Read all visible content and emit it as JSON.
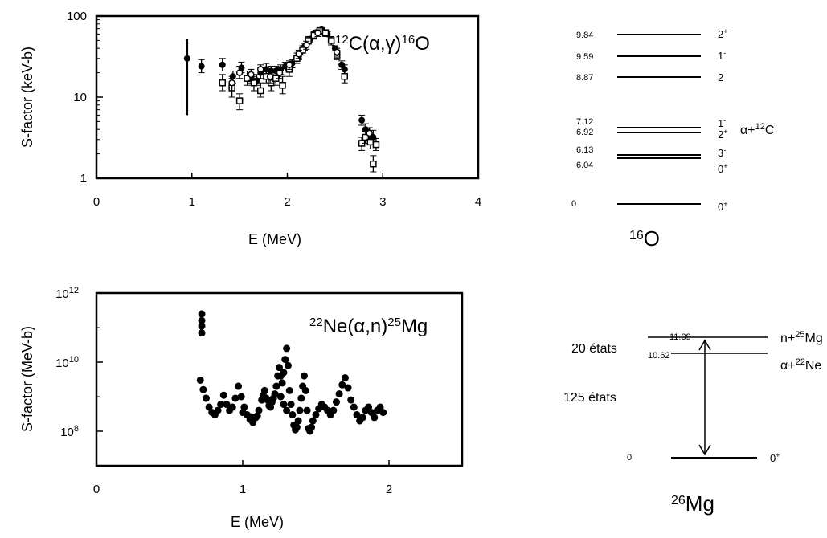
{
  "chart_data": [
    {
      "type": "scatter",
      "reaction": {
        "pre": "12",
        "a": "C(α,γ)",
        "sup2": "16",
        "b": "O"
      },
      "xlabel": "E (MeV)",
      "ylabel": "S-factor (keV-b)",
      "xlim": [
        0,
        4
      ],
      "ylim": [
        1,
        100
      ],
      "yscale": "log",
      "xticks": [
        "0",
        "1",
        "2",
        "3",
        "4"
      ],
      "yticks": [
        "1",
        "10",
        "100"
      ],
      "series": [
        {
          "marker": "filled-circle",
          "points": [
            [
              0.95,
              30
            ],
            [
              1.1,
              24
            ],
            [
              1.32,
              25
            ],
            [
              1.43,
              18
            ],
            [
              1.52,
              23
            ],
            [
              1.62,
              18
            ],
            [
              1.68,
              16
            ],
            [
              1.72,
              20
            ],
            [
              1.78,
              22
            ],
            [
              1.83,
              21
            ],
            [
              1.88,
              21
            ],
            [
              1.93,
              22
            ],
            [
              1.98,
              24
            ],
            [
              2.05,
              26
            ],
            [
              2.12,
              32
            ],
            [
              2.18,
              42
            ],
            [
              2.24,
              52
            ],
            [
              2.3,
              62
            ],
            [
              2.36,
              68
            ],
            [
              2.42,
              60
            ],
            [
              2.5,
              40
            ],
            [
              2.57,
              25
            ],
            [
              2.6,
              22
            ],
            [
              2.78,
              5.2
            ],
            [
              2.82,
              4.0
            ],
            [
              2.86,
              3.5
            ],
            [
              2.9,
              3.2
            ]
          ],
          "errors": [
            [
              6,
              52
            ],
            [
              20,
              29
            ],
            [
              21,
              30
            ],
            [
              15,
              21
            ],
            [
              20,
              27
            ],
            [
              15,
              21
            ],
            [
              14,
              19
            ],
            [
              17,
              23
            ],
            [
              19,
              26
            ],
            [
              18,
              24
            ],
            [
              18,
              24
            ],
            [
              19,
              25
            ],
            [
              21,
              27
            ],
            [
              23,
              29
            ],
            [
              29,
              36
            ],
            [
              38,
              46
            ],
            [
              48,
              56
            ],
            [
              58,
              67
            ],
            [
              64,
              72
            ],
            [
              56,
              64
            ],
            [
              37,
              43
            ],
            [
              22,
              28
            ],
            [
              19,
              25
            ],
            [
              4.5,
              6.0
            ],
            [
              3.4,
              4.7
            ],
            [
              2.9,
              4.2
            ],
            [
              2.6,
              3.9
            ]
          ]
        },
        {
          "marker": "open-square",
          "points": [
            [
              1.32,
              15
            ],
            [
              1.42,
              13
            ],
            [
              1.5,
              9
            ],
            [
              1.58,
              17
            ],
            [
              1.65,
              15
            ],
            [
              1.72,
              12
            ],
            [
              1.78,
              18
            ],
            [
              1.83,
              15
            ],
            [
              1.88,
              17
            ],
            [
              1.95,
              14
            ],
            [
              2.02,
              22
            ],
            [
              2.1,
              30
            ],
            [
              2.16,
              38
            ],
            [
              2.22,
              50
            ],
            [
              2.28,
              58
            ],
            [
              2.34,
              66
            ],
            [
              2.4,
              62
            ],
            [
              2.46,
              50
            ],
            [
              2.52,
              33
            ],
            [
              2.6,
              18
            ],
            [
              2.78,
              2.7
            ],
            [
              2.82,
              3.2
            ],
            [
              2.87,
              2.8
            ],
            [
              2.9,
              1.5
            ],
            [
              2.93,
              2.6
            ]
          ],
          "errors": [
            [
              12,
              19
            ],
            [
              10,
              17
            ],
            [
              7,
              11
            ],
            [
              14,
              21
            ],
            [
              12,
              18
            ],
            [
              10,
              15
            ],
            [
              15,
              22
            ],
            [
              12,
              19
            ],
            [
              14,
              21
            ],
            [
              11,
              18
            ],
            [
              18,
              26
            ],
            [
              26,
              35
            ],
            [
              33,
              43
            ],
            [
              45,
              56
            ],
            [
              52,
              64
            ],
            [
              60,
              72
            ],
            [
              56,
              68
            ],
            [
              44,
              56
            ],
            [
              29,
              38
            ],
            [
              15,
              22
            ],
            [
              2.2,
              3.2
            ],
            [
              2.7,
              3.8
            ],
            [
              2.3,
              3.4
            ],
            [
              1.2,
              1.9
            ],
            [
              2.2,
              3.1
            ]
          ]
        },
        {
          "marker": "open-circle",
          "points": [
            [
              1.42,
              15
            ],
            [
              1.5,
              20
            ],
            [
              1.62,
              19
            ],
            [
              1.72,
              22
            ],
            [
              1.82,
              18
            ],
            [
              1.92,
              20
            ],
            [
              2.02,
              25
            ],
            [
              2.12,
              34
            ],
            [
              2.2,
              44
            ],
            [
              2.32,
              62
            ],
            [
              2.52,
              36
            ],
            [
              2.86,
              3.6
            ]
          ],
          "errors": [
            [
              12,
              18
            ],
            [
              17,
              24
            ],
            [
              16,
              22
            ],
            [
              19,
              25
            ],
            [
              15,
              21
            ],
            [
              17,
              23
            ],
            [
              22,
              28
            ],
            [
              30,
              38
            ],
            [
              39,
              49
            ],
            [
              56,
              68
            ],
            [
              32,
              40
            ],
            [
              3.0,
              4.2
            ]
          ]
        }
      ]
    },
    {
      "type": "scatter",
      "reaction": {
        "pre": "22",
        "a": "Ne(α,n)",
        "sup2": "25",
        "b": "Mg"
      },
      "xlabel": "E (MeV)",
      "ylabel": "S-factor (MeV-b)",
      "xlim": [
        0,
        2.5
      ],
      "ylim": [
        10000000,
        1000000000000
      ],
      "yscale": "log",
      "xticks": [
        "0",
        "1",
        "2"
      ],
      "yticks": [
        {
          "base": "10",
          "exp": "8"
        },
        {
          "base": "10",
          "exp": "10"
        },
        {
          "base": "10",
          "exp": "12"
        }
      ],
      "marker": "filled-circle",
      "points": [
        [
          0.72,
          250000000000.0
        ],
        [
          0.72,
          160000000000.0
        ],
        [
          0.72,
          110000000000.0
        ],
        [
          0.72,
          70000000000.0
        ],
        [
          0.71,
          3000000000.0
        ],
        [
          0.73,
          1600000000.0
        ],
        [
          0.75,
          900000000.0
        ],
        [
          0.77,
          500000000.0
        ],
        [
          0.79,
          350000000.0
        ],
        [
          0.81,
          300000000.0
        ],
        [
          0.83,
          400000000.0
        ],
        [
          0.85,
          600000000.0
        ],
        [
          0.87,
          1100000000.0
        ],
        [
          0.89,
          600000000.0
        ],
        [
          0.91,
          400000000.0
        ],
        [
          0.93,
          500000000.0
        ],
        [
          0.95,
          900000000.0
        ],
        [
          0.97,
          2000000000.0
        ],
        [
          0.99,
          1000000000.0
        ],
        [
          1.01,
          500000000.0
        ],
        [
          1.03,
          300000000.0
        ],
        [
          1.05,
          220000000.0
        ],
        [
          1.07,
          180000000.0
        ],
        [
          1.09,
          250000000.0
        ],
        [
          1.11,
          400000000.0
        ],
        [
          1.13,
          800000000.0
        ],
        [
          1.15,
          1500000000.0
        ],
        [
          1.17,
          800000000.0
        ],
        [
          1.19,
          500000000.0
        ],
        [
          1.21,
          900000000.0
        ],
        [
          1.23,
          2000000000.0
        ],
        [
          1.24,
          4000000000.0
        ],
        [
          1.25,
          7000000000.0
        ],
        [
          1.26,
          4000000000.0
        ],
        [
          1.27,
          2500000000.0
        ],
        [
          1.28,
          5000000000.0
        ],
        [
          1.29,
          12000000000.0
        ],
        [
          1.3,
          25000000000.0
        ],
        [
          1.31,
          8000000000.0
        ],
        [
          1.32,
          1500000000.0
        ],
        [
          1.33,
          600000000.0
        ],
        [
          1.34,
          300000000.0
        ],
        [
          1.35,
          150000000.0
        ],
        [
          1.36,
          110000000.0
        ],
        [
          1.37,
          130000000.0
        ],
        [
          1.38,
          200000000.0
        ],
        [
          1.39,
          400000000.0
        ],
        [
          1.4,
          900000000.0
        ],
        [
          1.41,
          2000000000.0
        ],
        [
          1.42,
          4000000000.0
        ],
        [
          1.43,
          1500000000.0
        ],
        [
          1.44,
          400000000.0
        ],
        [
          1.45,
          120000000.0
        ],
        [
          1.46,
          100000000.0
        ],
        [
          1.47,
          130000000.0
        ],
        [
          1.48,
          200000000.0
        ],
        [
          1.5,
          300000000.0
        ],
        [
          1.52,
          450000000.0
        ],
        [
          1.54,
          600000000.0
        ],
        [
          1.56,
          500000000.0
        ],
        [
          1.58,
          400000000.0
        ],
        [
          1.6,
          300000000.0
        ],
        [
          1.62,
          400000000.0
        ],
        [
          1.64,
          700000000.0
        ],
        [
          1.66,
          1200000000.0
        ],
        [
          1.68,
          2200000000.0
        ],
        [
          1.7,
          3500000000.0
        ],
        [
          1.72,
          1800000000.0
        ],
        [
          1.74,
          800000000.0
        ],
        [
          1.76,
          500000000.0
        ],
        [
          1.78,
          300000000.0
        ],
        [
          1.8,
          200000000.0
        ],
        [
          1.82,
          250000000.0
        ],
        [
          1.84,
          400000000.0
        ],
        [
          1.86,
          500000000.0
        ],
        [
          1.88,
          350000000.0
        ],
        [
          1.9,
          250000000.0
        ],
        [
          1.92,
          400000000.0
        ],
        [
          1.94,
          500000000.0
        ],
        [
          1.96,
          350000000.0
        ],
        [
          1.0,
          350000000.0
        ],
        [
          1.1,
          280000000.0
        ],
        [
          1.2,
          700000000.0
        ],
        [
          1.22,
          1200000000.0
        ],
        [
          1.26,
          1000000000.0
        ],
        [
          1.28,
          600000000.0
        ],
        [
          1.3,
          400000000.0
        ],
        [
          1.18,
          550000000.0
        ],
        [
          1.16,
          900000000.0
        ],
        [
          1.06,
          260000000.0
        ],
        [
          1.14,
          1100000000.0
        ]
      ]
    }
  ],
  "level_schemes": [
    {
      "nucleus": {
        "mass": "16",
        "symbol": "O"
      },
      "channel": {
        "pre": "α+",
        "mass": "12",
        "symbol": "C"
      },
      "levels": [
        {
          "energy": "9.84",
          "jpi": {
            "j": "2",
            "p": "+"
          }
        },
        {
          "energy": "9 59",
          "jpi": {
            "j": "1",
            "p": "-"
          }
        },
        {
          "energy": "8.87",
          "jpi": {
            "j": "2",
            "p": "-"
          }
        },
        {
          "energy": "7.12",
          "jpi": {
            "j": "1",
            "p": "-"
          }
        },
        {
          "energy": "6.92",
          "jpi": {
            "j": "2",
            "p": "+"
          }
        },
        {
          "energy": "6.13",
          "jpi": {
            "j": "3",
            "p": "-"
          }
        },
        {
          "energy": "6.04",
          "jpi": {
            "j": "0",
            "p": "+"
          }
        },
        {
          "energy": "0",
          "jpi": {
            "j": "0",
            "p": "+"
          }
        }
      ]
    },
    {
      "nucleus": {
        "mass": "26",
        "symbol": "Mg"
      },
      "levels": [
        {
          "energy": "11.09",
          "label": {
            "pre": "n+",
            "mass": "25",
            "symbol": "Mg"
          }
        },
        {
          "energy": "10.62",
          "label": {
            "pre": "α+",
            "mass": "22",
            "symbol": "Ne"
          }
        },
        {
          "energy": "0",
          "jpi": {
            "j": "0",
            "p": "+"
          }
        }
      ],
      "annotations": [
        "20 états",
        "125 états"
      ]
    }
  ]
}
